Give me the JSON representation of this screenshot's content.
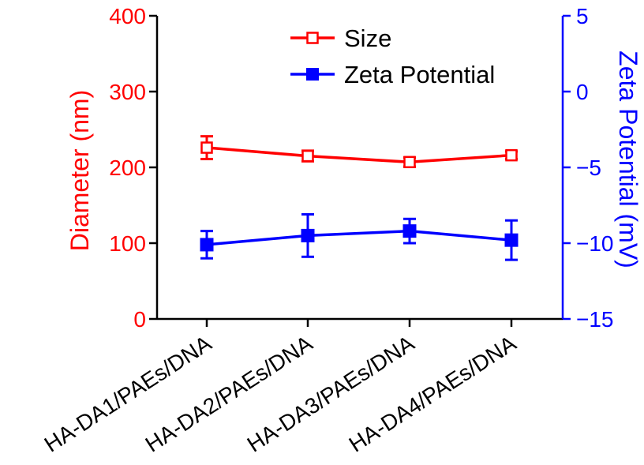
{
  "chart_data": {
    "type": "line",
    "categories": [
      "HA-DA1/PAEs/DNA",
      "HA-DA2/PAEs/DNA",
      "HA-DA3/PAEs/DNA",
      "HA-DA4/PAEs/DNA"
    ],
    "series": [
      {
        "name": "Size",
        "axis": "left",
        "color": "#ff0000",
        "marker": "open-square",
        "values": [
          226,
          215,
          207,
          216
        ],
        "errors": [
          15,
          7,
          6,
          5
        ]
      },
      {
        "name": "Zeta Potential",
        "axis": "right",
        "color": "#0000ff",
        "marker": "filled-square",
        "values": [
          -10.1,
          -9.5,
          -9.2,
          -9.8
        ],
        "errors": [
          0.9,
          1.4,
          0.8,
          1.3
        ]
      }
    ],
    "ylabel": "Diameter (nm)",
    "y2label": "Zeta Potential (mV)",
    "ylim": [
      0,
      400
    ],
    "y2lim": [
      -15,
      5
    ],
    "yticks": [
      "0",
      "100",
      "200",
      "300",
      "400"
    ],
    "y2ticks": [
      "-15",
      "-10",
      "-5",
      "0",
      "5"
    ],
    "legend_position": "top-center",
    "grid": false,
    "left_axis_color": "#ff0000",
    "right_axis_color": "#0000ff"
  }
}
